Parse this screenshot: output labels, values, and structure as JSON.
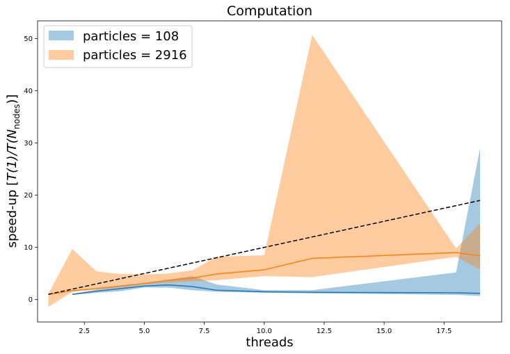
{
  "chart_data": {
    "type": "area",
    "title": "Computation",
    "xlabel": "threads",
    "ylabel_prefix": "speed-up [",
    "ylabel_math_main": "T(1)/T(N",
    "ylabel_math_sub": "nodes",
    "ylabel_suffix": ")]",
    "xlim": [
      0.55,
      19.9
    ],
    "ylim": [
      -4.3,
      53.4
    ],
    "xticks": [
      2.5,
      5.0,
      7.5,
      10.0,
      12.5,
      15.0,
      17.5
    ],
    "xtick_labels": [
      "2.5",
      "5.0",
      "7.5",
      "10.0",
      "12.5",
      "15.0",
      "17.5"
    ],
    "yticks": [
      0,
      10,
      20,
      30,
      40,
      50
    ],
    "ytick_labels": [
      "0",
      "10",
      "20",
      "30",
      "40",
      "50"
    ],
    "legend_position": "upper-left",
    "series": [
      {
        "name": "particles = 108",
        "color": "#1f77b4",
        "band_opacity": 0.4,
        "x": [
          2,
          3,
          4,
          5,
          6,
          7,
          8,
          10,
          12,
          18,
          19
        ],
        "mean": [
          1.0,
          1.6,
          2.1,
          2.6,
          2.8,
          2.5,
          1.8,
          1.5,
          1.4,
          1.3,
          1.2
        ],
        "lower": [
          0.9,
          1.3,
          1.6,
          2.3,
          2.3,
          1.8,
          1.5,
          1.3,
          1.2,
          0.9,
          0.7
        ],
        "upper": [
          1.1,
          1.9,
          2.7,
          3.1,
          3.8,
          4.5,
          2.9,
          1.8,
          1.8,
          5.2,
          29.0
        ]
      },
      {
        "name": "particles = 2916",
        "color": "#ff7f0e",
        "band_opacity": 0.4,
        "x": [
          1,
          2,
          3,
          4,
          5,
          6,
          7,
          8,
          10,
          12,
          18,
          19
        ],
        "mean": [
          1.0,
          1.7,
          2.1,
          2.6,
          3.1,
          3.7,
          4.1,
          4.9,
          5.7,
          7.9,
          9.0,
          8.4
        ],
        "lower": [
          -1.4,
          1.5,
          1.9,
          2.4,
          2.9,
          3.3,
          3.5,
          3.7,
          4.5,
          4.3,
          8.2,
          5.8
        ],
        "upper": [
          1.1,
          9.7,
          5.4,
          4.9,
          4.8,
          5.0,
          5.6,
          8.2,
          8.5,
          50.7,
          9.8,
          14.6
        ]
      }
    ],
    "reference_line": {
      "style": "dashed",
      "color": "#000000",
      "x": [
        1,
        19
      ],
      "y": [
        1,
        19
      ]
    }
  }
}
